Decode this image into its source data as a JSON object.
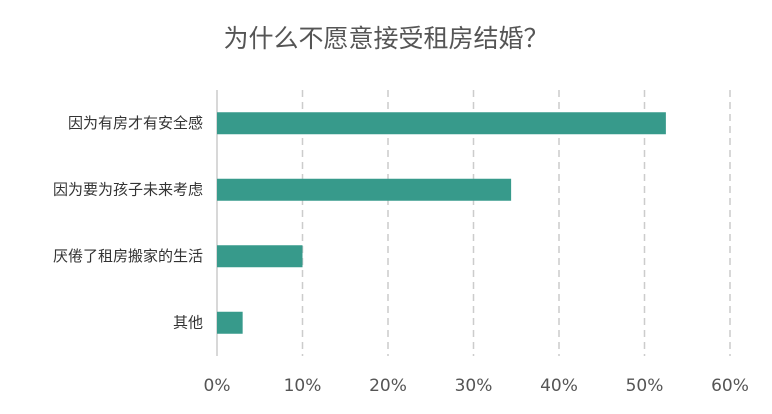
{
  "chart_data": {
    "type": "bar",
    "orientation": "horizontal",
    "title": "为什么不愿意接受租房结婚？",
    "categories": [
      "因为有房才有安全感",
      "因为要为孩子未来考虑",
      "厌倦了租房搬家的生活",
      "其他"
    ],
    "values": [
      52.5,
      34.4,
      10,
      3
    ],
    "color": "#379a8b",
    "xlim": [
      0,
      60
    ],
    "xticks": [
      {
        "value": 0,
        "label": "0%"
      },
      {
        "value": 10,
        "label": "10%"
      },
      {
        "value": 20,
        "label": "20%"
      },
      {
        "value": 30,
        "label": "30%"
      },
      {
        "value": 40,
        "label": "40%"
      },
      {
        "value": 50,
        "label": "50%"
      },
      {
        "value": 60,
        "label": "60%"
      }
    ],
    "grid": true
  }
}
